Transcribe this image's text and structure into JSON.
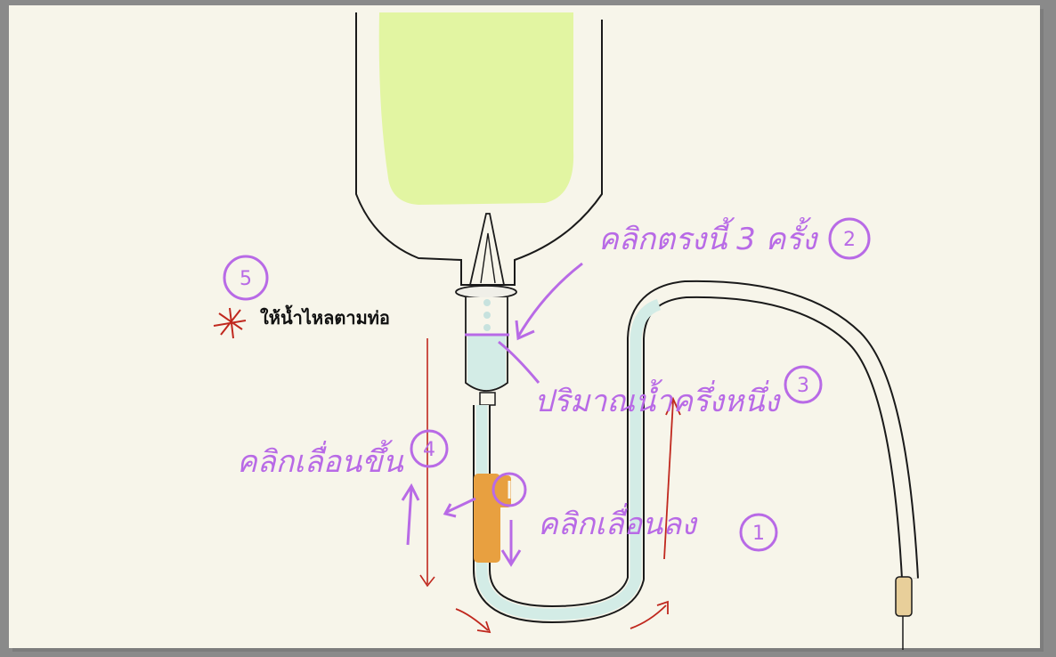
{
  "colors": {
    "page_background": "#f7f5ea",
    "outline": "#1a1a1a",
    "fluid_bag": "#e2f5a2",
    "fluid_chamber": "#d3ece6",
    "clamp": "#e8a040",
    "annotation": "#b86ae6",
    "arrow_red": "#c0281e",
    "tube_tip": "#e8cf9a"
  },
  "annotations": {
    "step1": {
      "text": "คลิกเลื่อนลง",
      "number": "1"
    },
    "step2": {
      "text": "คลิกตรงนี้ 3 ครั้ง",
      "number": "2"
    },
    "step3": {
      "text": "ปริมาณน้ำครึ่งหนึ่ง",
      "number": "3"
    },
    "step4": {
      "text": "คลิกเลื่อนขึ้น",
      "number": "4"
    },
    "step5": {
      "number": "5"
    },
    "flow_note": {
      "text": "ให้น้ำไหลตามท่อ"
    }
  }
}
